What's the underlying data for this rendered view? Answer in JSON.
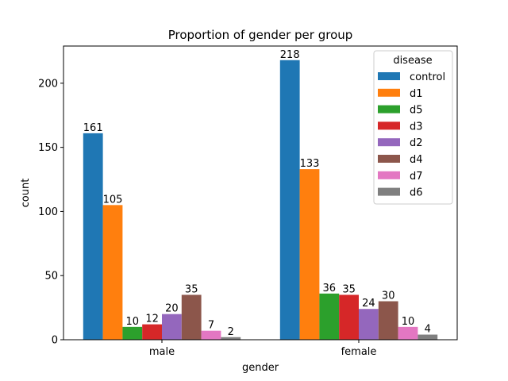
{
  "chart_data": {
    "type": "bar",
    "title": "Proportion of gender per group",
    "xlabel": "gender",
    "ylabel": "count",
    "categories": [
      "male",
      "female"
    ],
    "ylim": [
      0,
      229
    ],
    "yticks": [
      0,
      50,
      100,
      150,
      200
    ],
    "grid": false,
    "legend": {
      "title": "disease",
      "position": "top-right"
    },
    "series": [
      {
        "name": "control",
        "color": "#1f77b4",
        "values": [
          161,
          218
        ]
      },
      {
        "name": "d1",
        "color": "#ff7f0e",
        "values": [
          105,
          133
        ]
      },
      {
        "name": "d5",
        "color": "#2ca02c",
        "values": [
          10,
          36
        ]
      },
      {
        "name": "d3",
        "color": "#d62728",
        "values": [
          12,
          35
        ]
      },
      {
        "name": "d2",
        "color": "#9467bd",
        "values": [
          20,
          24
        ]
      },
      {
        "name": "d4",
        "color": "#8c564b",
        "values": [
          35,
          30
        ]
      },
      {
        "name": "d7",
        "color": "#e377c2",
        "values": [
          7,
          10
        ]
      },
      {
        "name": "d6",
        "color": "#7f7f7f",
        "values": [
          2,
          4
        ]
      }
    ]
  }
}
